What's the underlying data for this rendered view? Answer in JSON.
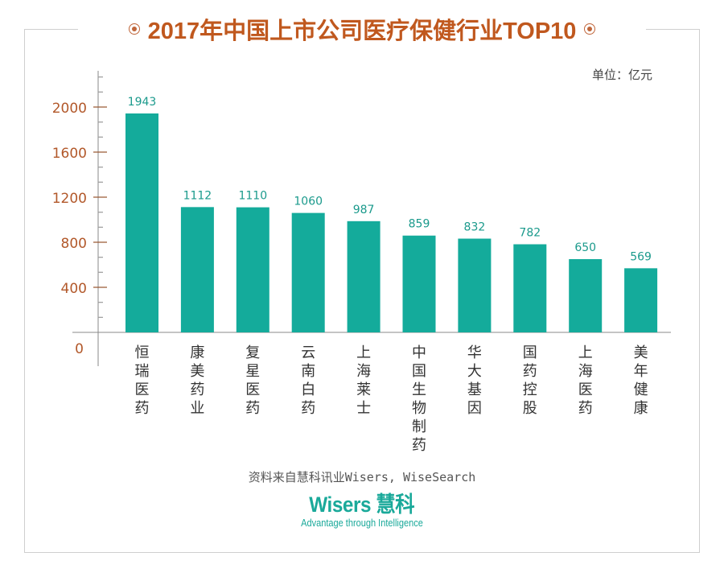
{
  "chart_data": {
    "type": "bar",
    "title": "2017年中国上市公司医疗保健行业TOP10",
    "unit_label": "单位：亿元",
    "categories": [
      "恒瑞医药",
      "康美药业",
      "复星医药",
      "云南白药",
      "上海莱士",
      "中国生物制药",
      "华大基因",
      "国药控股",
      "上海医药",
      "美年健康"
    ],
    "values": [
      1943,
      1112,
      1110,
      1060,
      987,
      859,
      832,
      782,
      650,
      569
    ],
    "data_labels": [
      "1943",
      "1112",
      "1110",
      "1060",
      "987",
      "859",
      "832",
      "782",
      "650",
      "569"
    ],
    "yticks": [
      0,
      400,
      800,
      1200,
      1600,
      2000
    ],
    "ytick_labels": [
      "0",
      "400",
      "800",
      "1200",
      "1600",
      "2000"
    ],
    "minor_tick_step": 133.33,
    "ylim": [
      0,
      2300
    ],
    "xlabel": "",
    "ylabel": "",
    "grid": false,
    "legend": "none",
    "colors": {
      "bar": "#14ab9b",
      "data_label": "#1b9a8c",
      "tick_label": "#b2582a",
      "title": "#c0581e",
      "axis": "#888888",
      "major_tick": "#9a5a34"
    }
  },
  "footer": {
    "source": "资料来自慧科讯业Wisers, WiseSearch",
    "logo_text": "Wisers 慧科",
    "logo_tagline": "Advantage through Intelligence"
  }
}
